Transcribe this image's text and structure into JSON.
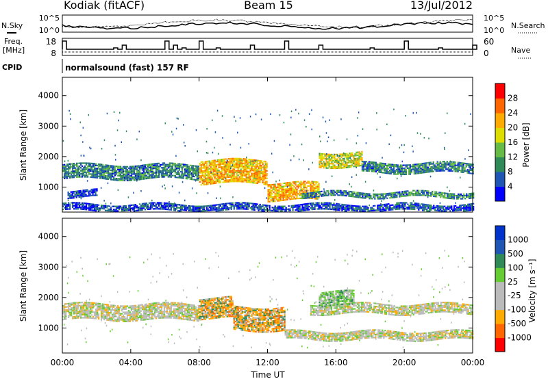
{
  "header": {
    "station": "Kodiak (fitACF)",
    "beam": "Beam 15",
    "date": "13/Jul/2012"
  },
  "top_panels": {
    "nsky_label": "N.Sky",
    "nsearch_label": "N.Search",
    "freq_label_line1": "Freq.",
    "freq_label_line2": "[MHz]",
    "nave_label": "Nave",
    "cpid_label": "CPID",
    "cpid_text": "normalsound (fast) 157 RF",
    "noise_ticks": [
      "10^5",
      "10^0"
    ],
    "freq_ticks": [
      "18",
      "8"
    ],
    "nave_ticks": [
      "60",
      "0"
    ]
  },
  "chart_data": [
    {
      "type": "heatmap",
      "panel": "power",
      "xlabel": "",
      "ylabel": "Slant Range [km]",
      "x_ticks": [
        "00:00",
        "04:00",
        "08:00",
        "12:00",
        "16:00",
        "20:00",
        "00:00"
      ],
      "y_ticks": [
        "1000",
        "2000",
        "3000",
        "4000"
      ],
      "ylim": [
        180,
        4600
      ],
      "xlim_hours": [
        0,
        24
      ],
      "colorbar_label": "Power [dB]",
      "colorbar_ticks": [
        "28",
        "24",
        "20",
        "16",
        "12",
        "8",
        "4"
      ],
      "colorbar_colors": [
        "#0000ff",
        "#1f55b5",
        "#2e8b57",
        "#66bb44",
        "#dddd00",
        "#ffaa00",
        "#ff6600",
        "#ff0000"
      ],
      "bands": [
        {
          "t0": 0.0,
          "t1": 8.0,
          "r0": 1250,
          "r1": 1750,
          "level": 2
        },
        {
          "t0": 8.0,
          "t1": 12.0,
          "r0": 1100,
          "r1": 1900,
          "level": 5
        },
        {
          "t0": 12.0,
          "t1": 15.0,
          "r0": 550,
          "r1": 1150,
          "level": 5
        },
        {
          "t0": 15.0,
          "t1": 17.5,
          "r0": 1650,
          "r1": 2150,
          "level": 4
        },
        {
          "t0": 17.5,
          "t1": 24.0,
          "r0": 1450,
          "r1": 1800,
          "level": 2
        },
        {
          "t0": 0.3,
          "t1": 2.0,
          "r0": 650,
          "r1": 900,
          "level": 1
        },
        {
          "t0": 14.0,
          "t1": 24.0,
          "r0": 650,
          "r1": 850,
          "level": 2
        },
        {
          "t0": 0.0,
          "t1": 24.0,
          "r0": 200,
          "r1": 420,
          "level": 1
        }
      ]
    },
    {
      "type": "heatmap",
      "panel": "velocity",
      "xlabel": "Time UT",
      "ylabel": "Slant Range [km]",
      "x_ticks": [
        "00:00",
        "04:00",
        "08:00",
        "12:00",
        "16:00",
        "20:00",
        "00:00"
      ],
      "y_ticks": [
        "1000",
        "2000",
        "3000",
        "4000"
      ],
      "ylim": [
        180,
        4600
      ],
      "xlim_hours": [
        0,
        24
      ],
      "colorbar_label": "Velocity [m s⁻¹]",
      "colorbar_ticks": [
        "1000",
        "500",
        "100",
        "25",
        "-25",
        "-100",
        "-500",
        "-1000"
      ],
      "colorbar_colors": [
        "#ff0000",
        "#ff6600",
        "#ffaa00",
        "#bbbbbb",
        "#bbbbbb",
        "#66cc33",
        "#2e8b57",
        "#1f55b5",
        "#0033cc"
      ],
      "bands": [
        {
          "t0": 0.0,
          "t1": 8.0,
          "r0": 1250,
          "r1": 1800,
          "level": "grey"
        },
        {
          "t0": 8.0,
          "t1": 10.0,
          "r0": 1300,
          "r1": 2000,
          "level": "orange"
        },
        {
          "t0": 10.0,
          "t1": 13.0,
          "r0": 900,
          "r1": 1700,
          "level": "orange"
        },
        {
          "t0": 13.0,
          "t1": 24.0,
          "r0": 600,
          "r1": 900,
          "level": "grey"
        },
        {
          "t0": 14.5,
          "t1": 24.0,
          "r0": 1450,
          "r1": 1800,
          "level": "grey"
        },
        {
          "t0": 15.0,
          "t1": 17.0,
          "r0": 1700,
          "r1": 2200,
          "level": "green"
        }
      ]
    }
  ]
}
